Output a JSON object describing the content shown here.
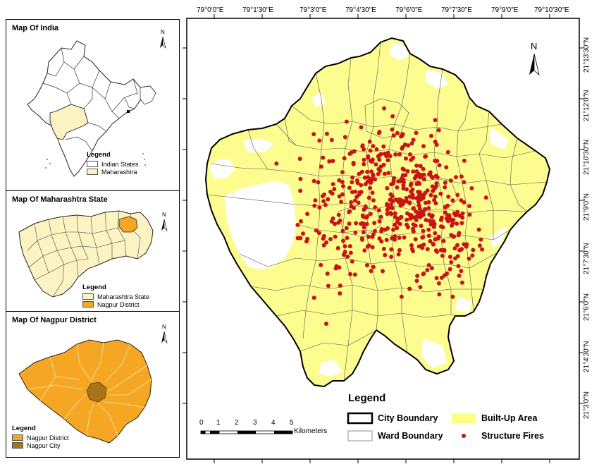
{
  "panels": {
    "india": {
      "title": "Map Of India",
      "legend_title": "Legend",
      "legend_items": [
        {
          "label": "Indian States",
          "color": "#ffffff"
        },
        {
          "label": "Maharashtra",
          "color": "#fbf3c1"
        }
      ]
    },
    "maharashtra": {
      "title": "Map Of Maharashtra State",
      "legend_title": "Legend",
      "legend_items": [
        {
          "label": "Maharashtra State",
          "color": "#fbf3c1"
        },
        {
          "label": "Nagpur District",
          "color": "#f5a623"
        }
      ]
    },
    "nagpur": {
      "title": "Map Of Nagpur District",
      "legend_title": "Legend",
      "legend_items": [
        {
          "label": "Nagpur District",
          "color": "#f5a623"
        },
        {
          "label": "Nagpur City",
          "color": "#a8731a"
        }
      ]
    }
  },
  "north_arrow_label": "N",
  "main_map": {
    "longitude_labels": [
      "79°0'0\"E",
      "79°1'30\"E",
      "79°3'0\"E",
      "79°4'30\"E",
      "79°6'0\"E",
      "79°7'30\"E",
      "79°9'0\"E",
      "79°10'30\"E"
    ],
    "latitude_labels": [
      "21°13'30\"N",
      "21°12'0\"N",
      "21°10'30\"N",
      "21°9'0\"N",
      "21°7'30\"N",
      "21°6'0\"N",
      "21°4'30\"N",
      "21°3'0\"N"
    ],
    "scale_bar": {
      "ticks": [
        "0",
        "1",
        "2",
        "3",
        "4",
        "5"
      ],
      "unit": "Kilometers"
    },
    "legend": {
      "title": "Legend",
      "items": [
        {
          "label": "City Boundary",
          "symbol": "thick-outline"
        },
        {
          "label": "Built-Up Area",
          "symbol": "yellow-fill",
          "color": "#ffff7f"
        },
        {
          "label": "Ward Boundary",
          "symbol": "thin-outline"
        },
        {
          "label": "Structure Fires",
          "symbol": "red-dot",
          "color": "#c81414"
        }
      ]
    },
    "colors": {
      "built_up": "#fcfc8f",
      "fire": "#c81414",
      "district": "#f5a623",
      "city": "#a8731a",
      "state": "#fbf3c1"
    }
  }
}
